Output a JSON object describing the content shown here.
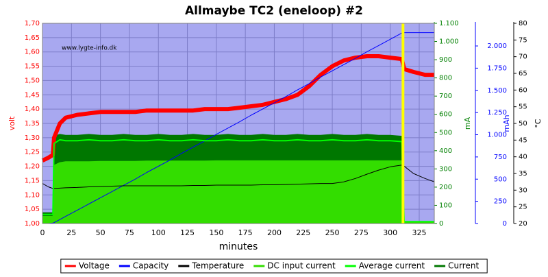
{
  "chart_data": {
    "type": "line",
    "title": "Allmaybe TC2 (eneloop) #2",
    "annotation": "www.lygte-info.dk",
    "xlabel": "minutes",
    "ylabel": "volt",
    "y2label": "mA",
    "y3label": "mAh",
    "y4label": "°C",
    "axis_colors": {
      "y": "#ff0000",
      "y2": "#008000",
      "y3": "#0000ff",
      "y4": "#000000"
    },
    "vline": {
      "x": 311,
      "color": "#ffff00"
    },
    "background": "#a8a8f0",
    "grid": true,
    "legend": "bottom",
    "x": [
      0,
      5,
      9,
      10,
      15,
      20,
      30,
      40,
      50,
      60,
      70,
      80,
      90,
      100,
      110,
      120,
      130,
      140,
      150,
      160,
      170,
      180,
      190,
      200,
      210,
      220,
      230,
      240,
      250,
      260,
      270,
      280,
      290,
      300,
      310,
      312,
      320,
      330,
      338
    ],
    "xlim": [
      0,
      338
    ],
    "xticks": [
      0,
      25,
      50,
      75,
      100,
      125,
      150,
      175,
      200,
      225,
      250,
      275,
      300,
      325
    ],
    "ylim": [
      1.0,
      1.7
    ],
    "yticks": [
      {
        "value": 1.0,
        "label": "1,00"
      },
      {
        "value": 1.05,
        "label": "1,05"
      },
      {
        "value": 1.1,
        "label": "1,10"
      },
      {
        "value": 1.15,
        "label": "1,15"
      },
      {
        "value": 1.2,
        "label": "1,20"
      },
      {
        "value": 1.25,
        "label": "1,25"
      },
      {
        "value": 1.3,
        "label": "1,30"
      },
      {
        "value": 1.35,
        "label": "1,35"
      },
      {
        "value": 1.4,
        "label": "1,40"
      },
      {
        "value": 1.45,
        "label": "1,45"
      },
      {
        "value": 1.5,
        "label": "1,50"
      },
      {
        "value": 1.55,
        "label": "1,55"
      },
      {
        "value": 1.6,
        "label": "1,60"
      },
      {
        "value": 1.65,
        "label": "1,65"
      },
      {
        "value": 1.7,
        "label": "1,70"
      }
    ],
    "y2lim": [
      0,
      1100
    ],
    "y2ticks": [
      0,
      100,
      200,
      300,
      400,
      500,
      600,
      700,
      800,
      900,
      {
        "value": 1000,
        "label": "1.000"
      },
      {
        "value": 1100,
        "label": "1.100"
      }
    ],
    "y3lim": [
      0,
      2255
    ],
    "y3ticks": [
      0,
      250,
      500,
      750,
      {
        "value": 1000,
        "label": "1.000"
      },
      {
        "value": 1250,
        "label": "1.250"
      },
      {
        "value": 1500,
        "label": "1.500"
      },
      {
        "value": 1750,
        "label": "1.750"
      },
      {
        "value": 2000,
        "label": "2.000"
      }
    ],
    "y4lim": [
      20,
      80
    ],
    "y4ticks": [
      20,
      25,
      30,
      35,
      40,
      45,
      50,
      55,
      60,
      65,
      70,
      75,
      80
    ],
    "series": [
      {
        "name": "Voltage",
        "color": "#ff0000",
        "axis": "y",
        "style": "line",
        "width": 6,
        "values": [
          1.22,
          1.23,
          1.24,
          1.3,
          1.35,
          1.37,
          1.38,
          1.385,
          1.39,
          1.39,
          1.39,
          1.39,
          1.395,
          1.395,
          1.395,
          1.395,
          1.395,
          1.4,
          1.4,
          1.4,
          1.405,
          1.41,
          1.415,
          1.425,
          1.435,
          1.45,
          1.48,
          1.52,
          1.55,
          1.57,
          1.58,
          1.585,
          1.585,
          1.58,
          1.575,
          1.54,
          1.53,
          1.52,
          1.52
        ]
      },
      {
        "name": "Capacity",
        "color": "#0000ff",
        "axis": "y3",
        "style": "line",
        "width": 1,
        "values": [
          0,
          0,
          5,
          10,
          45,
          80,
          150,
          220,
          290,
          360,
          430,
          500,
          575,
          645,
          715,
          790,
          860,
          930,
          1005,
          1075,
          1145,
          1220,
          1290,
          1360,
          1430,
          1505,
          1575,
          1650,
          1720,
          1790,
          1860,
          1935,
          2005,
          2075,
          2145,
          2150,
          2150,
          2150,
          2150
        ]
      },
      {
        "name": "Temperature",
        "color": "#000000",
        "axis": "y4",
        "style": "line",
        "width": 1,
        "values": [
          32,
          31,
          30.5,
          30.5,
          30.6,
          30.7,
          30.8,
          31,
          31.1,
          31.2,
          31.3,
          31.3,
          31.3,
          31.3,
          31.3,
          31.3,
          31.4,
          31.4,
          31.5,
          31.5,
          31.5,
          31.5,
          31.6,
          31.6,
          31.7,
          31.8,
          31.9,
          32,
          32,
          32.5,
          33.5,
          34.8,
          36,
          37,
          37.5,
          37.2,
          35,
          33.5,
          32.5
        ]
      },
      {
        "name": "DC input current",
        "color": "#33dd00",
        "axis": "y2",
        "style": "area",
        "width": 1,
        "values": [
          40,
          40,
          40,
          320,
          335,
          340,
          340,
          340,
          342,
          342,
          342,
          342,
          344,
          344,
          344,
          344,
          344,
          344,
          345,
          345,
          345,
          345,
          345,
          345,
          345,
          345,
          345,
          345,
          345,
          345,
          345,
          345,
          345,
          345,
          345,
          10,
          10,
          10,
          10
        ]
      },
      {
        "name": "Average current",
        "color": "#00ff00",
        "axis": "y2",
        "style": "line",
        "width": 2,
        "values": [
          50,
          50,
          50,
          440,
          460,
          455,
          455,
          460,
          455,
          455,
          460,
          455,
          455,
          460,
          455,
          455,
          460,
          455,
          455,
          460,
          455,
          455,
          460,
          455,
          455,
          460,
          455,
          455,
          460,
          455,
          455,
          460,
          455,
          455,
          450,
          10,
          10,
          10,
          10
        ]
      },
      {
        "name": "Current",
        "color": "#007700",
        "axis": "y2",
        "style": "area",
        "width": 1,
        "values": [
          60,
          60,
          60,
          480,
          490,
          485,
          485,
          490,
          485,
          485,
          490,
          485,
          485,
          490,
          485,
          485,
          490,
          485,
          485,
          490,
          485,
          485,
          490,
          485,
          485,
          490,
          485,
          485,
          490,
          485,
          485,
          490,
          485,
          485,
          480,
          10,
          10,
          10,
          10
        ]
      }
    ]
  }
}
